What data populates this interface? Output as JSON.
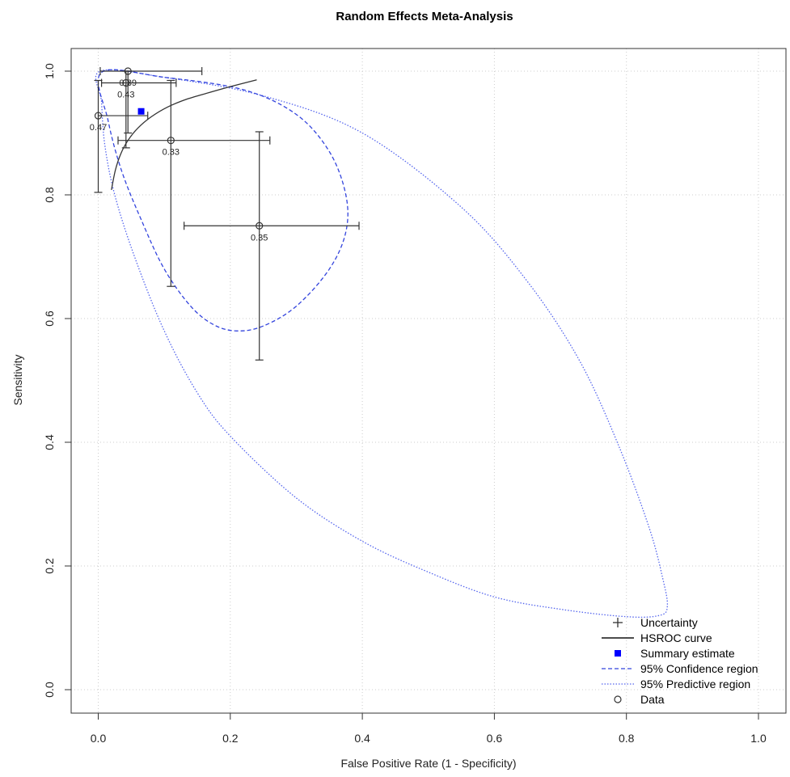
{
  "chart_data": {
    "type": "scatter",
    "title": "Random Effects Meta-Analysis",
    "xlabel": "False Positive Rate (1 - Specificity)",
    "ylabel": "Sensitivity",
    "xlim": [
      0,
      1
    ],
    "ylim": [
      0,
      1
    ],
    "xticks": [
      "0.0",
      "0.2",
      "0.4",
      "0.6",
      "0.8",
      "1.0"
    ],
    "yticks": [
      "0.0",
      "0.2",
      "0.4",
      "0.6",
      "0.8",
      "1.0"
    ],
    "grid": true,
    "legend_position": "bottom-right",
    "legend": [
      {
        "label": "Uncertainty",
        "symbol": "plus"
      },
      {
        "label": "HSROC curve",
        "symbol": "solid-line"
      },
      {
        "label": "Summary estimate",
        "symbol": "blue-square"
      },
      {
        "label": "95% Confidence region",
        "symbol": "dashed-line"
      },
      {
        "label": "95% Predictive region",
        "symbol": "dotted-line"
      },
      {
        "label": "Data",
        "symbol": "circle"
      }
    ],
    "colors": {
      "data": "#333333",
      "hsroc": "#333333",
      "summary": "#0000ff",
      "confidence": "#3344dd",
      "predictive": "#5566ee",
      "grid": "#cccccc"
    },
    "studies": [
      {
        "label": "0.39",
        "x": 0.045,
        "y": 1.0,
        "x_lo": 0.003,
        "x_hi": 0.157,
        "y_lo": 0.9,
        "y_hi": 1.0
      },
      {
        "label": "0.43",
        "x": 0.042,
        "y": 0.981,
        "x_lo": 0.005,
        "x_hi": 0.118,
        "y_lo": 0.876,
        "y_hi": 1.0
      },
      {
        "label": "0.47",
        "x": 0.0,
        "y": 0.928,
        "x_lo": 0.0,
        "x_hi": 0.075,
        "y_lo": 0.804,
        "y_hi": 0.985
      },
      {
        "label": "0.33",
        "x": 0.11,
        "y": 0.888,
        "x_lo": 0.03,
        "x_hi": 0.26,
        "y_lo": 0.652,
        "y_hi": 0.985
      },
      {
        "label": "0.35",
        "x": 0.244,
        "y": 0.75,
        "x_lo": 0.13,
        "x_hi": 0.395,
        "y_lo": 0.533,
        "y_hi": 0.902
      }
    ],
    "summary_estimate": {
      "x": 0.065,
      "y": 0.935
    },
    "hsroc_curve": [
      [
        0.02,
        0.808
      ],
      [
        0.026,
        0.84
      ],
      [
        0.034,
        0.866
      ],
      [
        0.045,
        0.888
      ],
      [
        0.06,
        0.908
      ],
      [
        0.08,
        0.926
      ],
      [
        0.105,
        0.942
      ],
      [
        0.135,
        0.955
      ],
      [
        0.17,
        0.966
      ],
      [
        0.2,
        0.975
      ],
      [
        0.24,
        0.986
      ]
    ],
    "confidence_region": [
      [
        0.005,
        0.998
      ],
      [
        0.1,
        0.99
      ],
      [
        0.22,
        0.97
      ],
      [
        0.3,
        0.93
      ],
      [
        0.35,
        0.87
      ],
      [
        0.375,
        0.8
      ],
      [
        0.375,
        0.74
      ],
      [
        0.35,
        0.68
      ],
      [
        0.3,
        0.62
      ],
      [
        0.25,
        0.588
      ],
      [
        0.21,
        0.58
      ],
      [
        0.175,
        0.59
      ],
      [
        0.14,
        0.62
      ],
      [
        0.1,
        0.68
      ],
      [
        0.065,
        0.76
      ],
      [
        0.035,
        0.84
      ],
      [
        0.015,
        0.92
      ],
      [
        0.005,
        0.998
      ]
    ],
    "predictive_region": [
      [
        0.003,
        1.0
      ],
      [
        0.1,
        0.99
      ],
      [
        0.25,
        0.96
      ],
      [
        0.4,
        0.9
      ],
      [
        0.55,
        0.78
      ],
      [
        0.65,
        0.66
      ],
      [
        0.73,
        0.53
      ],
      [
        0.79,
        0.39
      ],
      [
        0.835,
        0.26
      ],
      [
        0.855,
        0.18
      ],
      [
        0.862,
        0.135
      ],
      [
        0.85,
        0.12
      ],
      [
        0.8,
        0.118
      ],
      [
        0.7,
        0.13
      ],
      [
        0.6,
        0.15
      ],
      [
        0.5,
        0.19
      ],
      [
        0.4,
        0.24
      ],
      [
        0.3,
        0.31
      ],
      [
        0.2,
        0.41
      ],
      [
        0.15,
        0.48
      ],
      [
        0.1,
        0.58
      ],
      [
        0.055,
        0.7
      ],
      [
        0.025,
        0.8
      ],
      [
        0.01,
        0.88
      ],
      [
        0.005,
        0.95
      ],
      [
        0.003,
        1.0
      ]
    ]
  }
}
